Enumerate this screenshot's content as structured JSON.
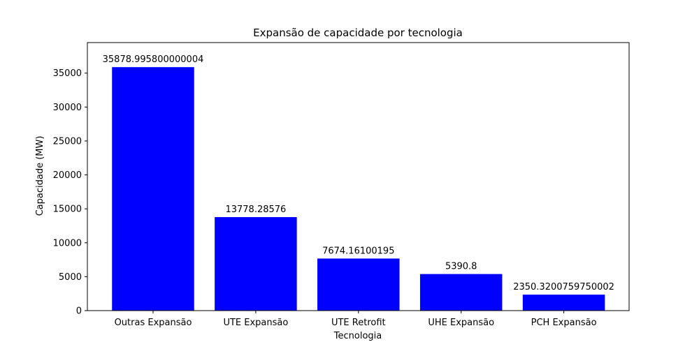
{
  "chart_data": {
    "type": "bar",
    "title": "Expansão de capacidade por tecnologia",
    "xlabel": "Tecnologia",
    "ylabel": "Capacidade (MW)",
    "categories": [
      "Outras Expansão",
      "UTE Expansão",
      "UTE Retrofit",
      "UHE Expansão",
      "PCH Expansão"
    ],
    "values": [
      35878.995800000004,
      13778.28576,
      7674.16100195,
      5390.8,
      2350.3200759750002
    ],
    "value_labels": [
      "35878.995800000004",
      "13778.28576",
      "7674.16100195",
      "5390.8",
      "2350.3200759750002"
    ],
    "ylim": [
      0,
      39500
    ],
    "yticks": [
      0,
      5000,
      10000,
      15000,
      20000,
      25000,
      30000,
      35000
    ],
    "ytick_labels": [
      "0",
      "5000",
      "10000",
      "15000",
      "20000",
      "25000",
      "30000",
      "35000"
    ],
    "bar_color": "#0000ff",
    "grid": false,
    "legend": "none"
  }
}
